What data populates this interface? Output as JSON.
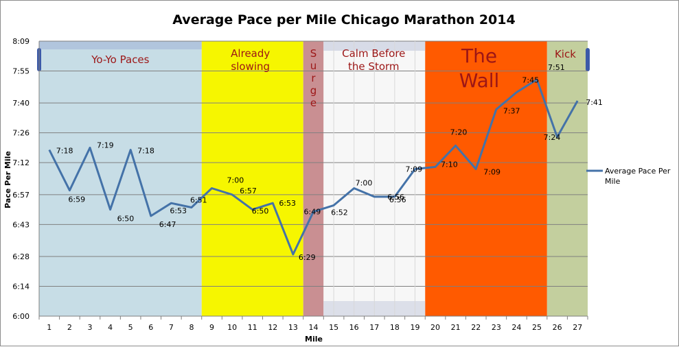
{
  "chart_data": {
    "type": "line",
    "title": "Average Pace per Mile Chicago Marathon 2014",
    "xlabel": "Mile",
    "ylabel": "Pace Per Mile",
    "x": [
      1,
      2,
      3,
      4,
      5,
      6,
      7,
      8,
      9,
      10,
      11,
      12,
      13,
      14,
      15,
      16,
      17,
      18,
      19,
      20,
      21,
      22,
      23,
      24,
      25,
      26,
      27
    ],
    "y_tick_labels": [
      "6:00",
      "6:14",
      "6:28",
      "6:43",
      "6:57",
      "7:12",
      "7:26",
      "7:40",
      "7:55",
      "8:09"
    ],
    "ylim": [
      "6:00",
      "8:09"
    ],
    "grid": true,
    "legend_position": "right",
    "series": [
      {
        "name": "Average Pace Per Mile",
        "color": "#4472a8",
        "values": [
          "7:18",
          "6:59",
          "7:19",
          "6:50",
          "7:18",
          "6:47",
          "6:53",
          "6:51",
          "7:00",
          "6:57",
          "6:50",
          "6:53",
          "6:29",
          "6:49",
          "6:52",
          "7:00",
          "6:56",
          "6:56",
          "7:09",
          "7:10",
          "7:20",
          "7:09",
          "7:37",
          "7:45",
          "7:51",
          "7:24",
          "7:41"
        ]
      }
    ],
    "zones": [
      {
        "label": "Yo-Yo Paces",
        "from": 0.5,
        "to": 8.5,
        "color": "#c7dde6",
        "text_color": "#9c1616"
      },
      {
        "label": "Already slowing",
        "from": 8.5,
        "to": 13.5,
        "color": "#f6f600",
        "text_color": "#9c1616"
      },
      {
        "label": "Surge",
        "from": 13.5,
        "to": 14.5,
        "color": "#c98f92",
        "text_color": "#9c1616"
      },
      {
        "label": "Calm Before the Storm",
        "from": 14.5,
        "to": 19.5,
        "color": "#f7f7f7",
        "text_color": "#9c1616"
      },
      {
        "label": "The Wall",
        "from": 19.5,
        "to": 25.5,
        "color": "#ff5a00",
        "text_color": "#9c1616"
      },
      {
        "label": "Kick",
        "from": 25.5,
        "to": 27.5,
        "color": "#c3cf9e",
        "text_color": "#9c1616"
      }
    ]
  }
}
